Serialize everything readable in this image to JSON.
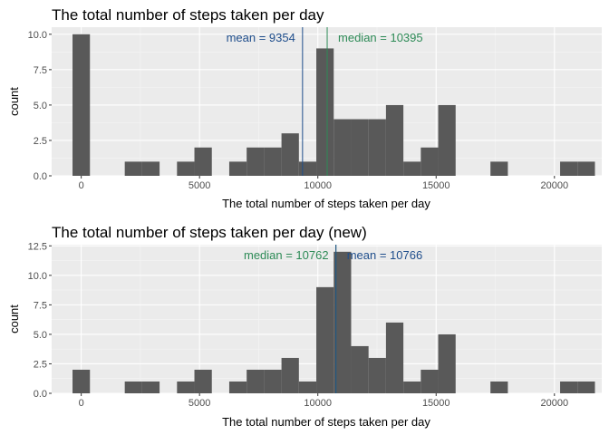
{
  "chart_data": [
    {
      "type": "bar",
      "title": "The total number of steps taken per day",
      "xlabel": "The total number of steps taken per day",
      "ylabel": "count",
      "xlim": [
        -1250,
        22000
      ],
      "ylim": [
        0,
        10.5
      ],
      "x_ticks": [
        0,
        5000,
        10000,
        15000,
        20000
      ],
      "x_tick_labels": [
        "0",
        "5000",
        "10000",
        "15000",
        "20000"
      ],
      "y_ticks": [
        0,
        2.5,
        5,
        7.5,
        10
      ],
      "y_tick_labels": [
        "0.0",
        "2.5",
        "5.0",
        "7.5",
        "10.0"
      ],
      "bin_width": 736,
      "bin_starts": [
        -368,
        368,
        1104,
        1840,
        2576,
        3312,
        4048,
        4784,
        5520,
        6256,
        6992,
        7728,
        8464,
        9200,
        9936,
        10672,
        11408,
        12144,
        12880,
        13616,
        14352,
        15088,
        15824,
        16560,
        17296,
        18032,
        18768,
        19504,
        20240,
        20976
      ],
      "counts": [
        10,
        0,
        0,
        1,
        1,
        0,
        1,
        2,
        0,
        1,
        2,
        2,
        3,
        1,
        9,
        4,
        4,
        4,
        5,
        1,
        2,
        5,
        0,
        0,
        1,
        0,
        0,
        0,
        1,
        1
      ],
      "grid": true,
      "bar_color": "#595959",
      "vlines": [
        {
          "label": "mean =  9354",
          "value": 9354,
          "color": "#1f4e8c",
          "side": "left"
        },
        {
          "label": "median =  10395",
          "value": 10395,
          "color": "#2e8b57",
          "side": "right"
        }
      ]
    },
    {
      "type": "bar",
      "title": "The total number of steps taken per day (new)",
      "xlabel": "The total number of steps taken per day",
      "ylabel": "count",
      "xlim": [
        -1250,
        22000
      ],
      "ylim": [
        0,
        12.6
      ],
      "x_ticks": [
        0,
        5000,
        10000,
        15000,
        20000
      ],
      "x_tick_labels": [
        "0",
        "5000",
        "10000",
        "15000",
        "20000"
      ],
      "y_ticks": [
        0,
        2.5,
        5,
        7.5,
        10,
        12.5
      ],
      "y_tick_labels": [
        "0.0",
        "2.5",
        "5.0",
        "7.5",
        "10.0",
        "12.5"
      ],
      "bin_width": 736,
      "bin_starts": [
        -368,
        368,
        1104,
        1840,
        2576,
        3312,
        4048,
        4784,
        5520,
        6256,
        6992,
        7728,
        8464,
        9200,
        9936,
        10672,
        11408,
        12144,
        12880,
        13616,
        14352,
        15088,
        15824,
        16560,
        17296,
        18032,
        18768,
        19504,
        20240,
        20976
      ],
      "counts": [
        2,
        0,
        0,
        1,
        1,
        0,
        1,
        2,
        0,
        1,
        2,
        2,
        3,
        1,
        9,
        12,
        4,
        3,
        6,
        1,
        2,
        5,
        0,
        0,
        1,
        0,
        0,
        0,
        1,
        1
      ],
      "grid": true,
      "bar_color": "#595959",
      "vlines": [
        {
          "label": "median =  10762",
          "value": 10762,
          "color": "#2e8b57",
          "side": "left"
        },
        {
          "label": "mean =  10766",
          "value": 10766,
          "color": "#1f4e8c",
          "side": "right"
        }
      ]
    }
  ]
}
